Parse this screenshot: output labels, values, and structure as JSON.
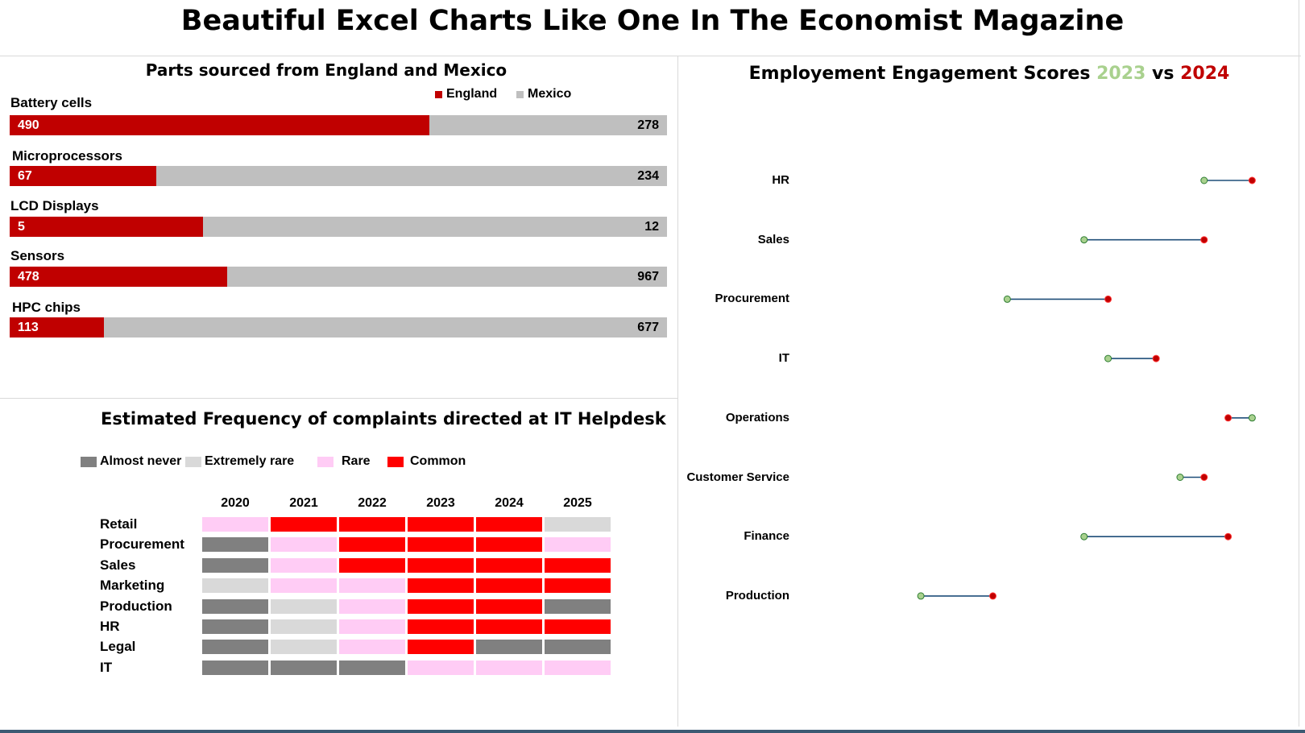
{
  "page_title": "Beautiful Excel Charts Like One In The Economist Magazine",
  "chart_data": [
    {
      "type": "bar",
      "title": "Parts sourced from England and Mexico",
      "legend": [
        "England",
        "Mexico"
      ],
      "colors": {
        "England": "#c00000",
        "Mexico": "#bfbfbf"
      },
      "categories": [
        "Battery cells",
        "Microprocessors",
        "LCD Displays",
        "Sensors",
        "HPC chips"
      ],
      "series": [
        {
          "name": "England",
          "values": [
            490,
            67,
            5,
            478,
            113
          ]
        },
        {
          "name": "Mexico",
          "values": [
            278,
            234,
            12,
            967,
            677
          ]
        }
      ]
    },
    {
      "type": "heatmap",
      "title": "Estimated Frequency of complaints directed at IT Helpdesk",
      "legend": [
        "Almost never",
        "Extremely rare",
        "Rare",
        "Common"
      ],
      "colors": {
        "Almost never": "#808080",
        "Extremely rare": "#d9d9d9",
        "Rare": "#ffccf5",
        "Common": "#ff0000"
      },
      "years": [
        "2020",
        "2021",
        "2022",
        "2023",
        "2024",
        "2025"
      ],
      "rows": [
        {
          "name": "Retail",
          "levels": [
            "Rare",
            "Common",
            "Common",
            "Common",
            "Common",
            "Extremely rare"
          ]
        },
        {
          "name": "Procurement",
          "levels": [
            "Almost never",
            "Rare",
            "Common",
            "Common",
            "Common",
            "Rare"
          ]
        },
        {
          "name": "Sales",
          "levels": [
            "Almost never",
            "Rare",
            "Common",
            "Common",
            "Common",
            "Common"
          ]
        },
        {
          "name": "Marketing",
          "levels": [
            "Extremely rare",
            "Rare",
            "Rare",
            "Common",
            "Common",
            "Common"
          ]
        },
        {
          "name": "Production",
          "levels": [
            "Almost never",
            "Extremely rare",
            "Rare",
            "Common",
            "Common",
            "Almost never"
          ]
        },
        {
          "name": "HR",
          "levels": [
            "Almost never",
            "Extremely rare",
            "Rare",
            "Common",
            "Common",
            "Common"
          ]
        },
        {
          "name": "Legal",
          "levels": [
            "Almost never",
            "Extremely rare",
            "Rare",
            "Common",
            "Almost never",
            "Almost never"
          ]
        },
        {
          "name": "IT",
          "levels": [
            "Almost never",
            "Almost never",
            "Almost never",
            "Rare",
            "Rare",
            "Rare"
          ]
        }
      ]
    },
    {
      "type": "scatter",
      "subtype": "dumbbell",
      "title": {
        "prefix": "Employement Engagement Scores ",
        "year_a": "2023",
        "middle": " vs ",
        "year_b": "2024"
      },
      "colors": {
        "2023": "#a9d18e",
        "2024": "#c00000",
        "connector": "#1f4e79"
      },
      "xlim": [
        0,
        100
      ],
      "categories": [
        "HR",
        "Sales",
        "Procurement",
        "IT",
        "Operations",
        "Customer Service",
        "Finance",
        "Production"
      ],
      "series": [
        {
          "name": "2023",
          "values": [
            81,
            56,
            40,
            61,
            91,
            76,
            56,
            22
          ]
        },
        {
          "name": "2024",
          "values": [
            91,
            81,
            61,
            71,
            86,
            81,
            86,
            37
          ]
        }
      ]
    }
  ]
}
